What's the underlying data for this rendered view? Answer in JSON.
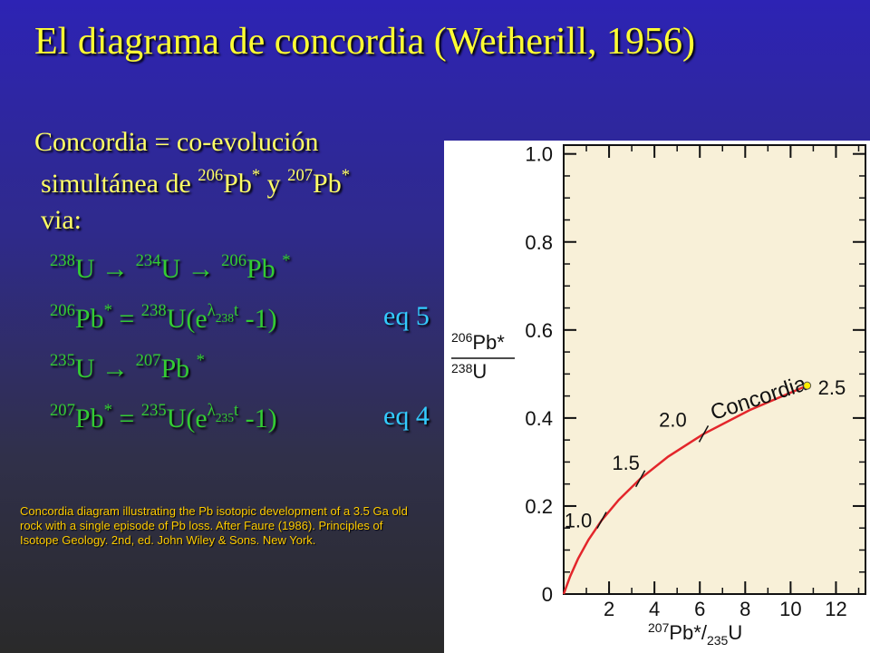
{
  "header": {
    "title": "El diagrama de concordia (Wetherill, 1956)"
  },
  "body": {
    "lines": [
      [
        [
          "Concordia = co-evolución",
          ""
        ]
      ],
      [
        [
          "simultánea de ",
          ""
        ],
        [
          "206",
          "sup"
        ],
        [
          "Pb",
          ""
        ],
        [
          "*",
          "sup"
        ],
        [
          " y ",
          ""
        ],
        [
          "207",
          "sup"
        ],
        [
          "Pb",
          ""
        ],
        [
          "*",
          "sup"
        ]
      ],
      [
        [
          "via:",
          ""
        ]
      ]
    ]
  },
  "equations": [
    {
      "parts": [
        [
          "238",
          "sup"
        ],
        [
          "U → ",
          ""
        ],
        [
          "234",
          "sup"
        ],
        [
          "U → ",
          ""
        ],
        [
          "206",
          "sup"
        ],
        [
          "Pb ",
          ""
        ],
        [
          "*",
          "sup"
        ]
      ]
    },
    {
      "parts": [
        [
          "206",
          "sup"
        ],
        [
          "Pb",
          ""
        ],
        [
          "*",
          "sup"
        ],
        [
          " = ",
          ""
        ],
        [
          "238",
          "sup"
        ],
        [
          "U(e",
          ""
        ],
        [
          "λ",
          "sup"
        ],
        [
          "238",
          "ssub"
        ],
        [
          "t",
          "sup"
        ],
        [
          " -1)",
          ""
        ]
      ],
      "label": "eq 5"
    },
    {
      "parts": [
        [
          "235",
          "sup"
        ],
        [
          "U → ",
          ""
        ],
        [
          "207",
          "sup"
        ],
        [
          "Pb ",
          ""
        ],
        [
          "*",
          "sup"
        ]
      ]
    },
    {
      "parts": [
        [
          "207",
          "sup"
        ],
        [
          "Pb",
          ""
        ],
        [
          "*",
          "sup"
        ],
        [
          " = ",
          ""
        ],
        [
          "235",
          "sup"
        ],
        [
          "U(e",
          ""
        ],
        [
          "λ",
          "sup"
        ],
        [
          "235",
          "ssub"
        ],
        [
          "t",
          "sup"
        ],
        [
          " -1)",
          ""
        ]
      ],
      "label": "eq 4"
    }
  ],
  "caption": "Concordia diagram illustrating the Pb isotopic development of a 3.5 Ga old rock with a single episode of Pb loss. After Faure (1986). Principles of Isotope Geology. 2nd, ed. John Wiley & Sons. New York.",
  "chart_data": {
    "type": "line",
    "x_label": {
      "top": "207",
      "main": "Pb*/",
      "bottom": "235",
      "unit": "U"
    },
    "y_label": {
      "top": "206",
      "main": "Pb*",
      "bottom": "238",
      "unit": "U"
    },
    "x": [
      0,
      0.279,
      0.636,
      1.093,
      1.677,
      2.426,
      3.38,
      4.6,
      6.17,
      8.19,
      10.73
    ],
    "series": [
      {
        "name": "Concordia",
        "color": "#e3262b",
        "values": [
          0,
          0.0395,
          0.0806,
          0.1233,
          0.1678,
          0.2139,
          0.2622,
          0.3121,
          0.3639,
          0.4178,
          0.4736
        ]
      }
    ],
    "time_marks": [
      {
        "label": "1.0",
        "x": 1.677,
        "y": 0.1678,
        "marker": "tick"
      },
      {
        "label": "1.5",
        "x": 3.38,
        "y": 0.2622,
        "marker": "tick"
      },
      {
        "label": "2.0",
        "x": 6.17,
        "y": 0.3639,
        "marker": "tick"
      },
      {
        "label": "2.5",
        "x": 10.73,
        "y": 0.4736,
        "marker": "dot"
      }
    ],
    "xlim": [
      0,
      13.3
    ],
    "ylim": [
      0,
      1.02
    ],
    "xticks": [
      2,
      4,
      6,
      8,
      10,
      12
    ],
    "yticks": [
      0,
      0.2,
      0.4,
      0.6,
      0.8,
      {
        "value": 1,
        "label": "1.0"
      }
    ],
    "background": "#f8f0d8"
  }
}
